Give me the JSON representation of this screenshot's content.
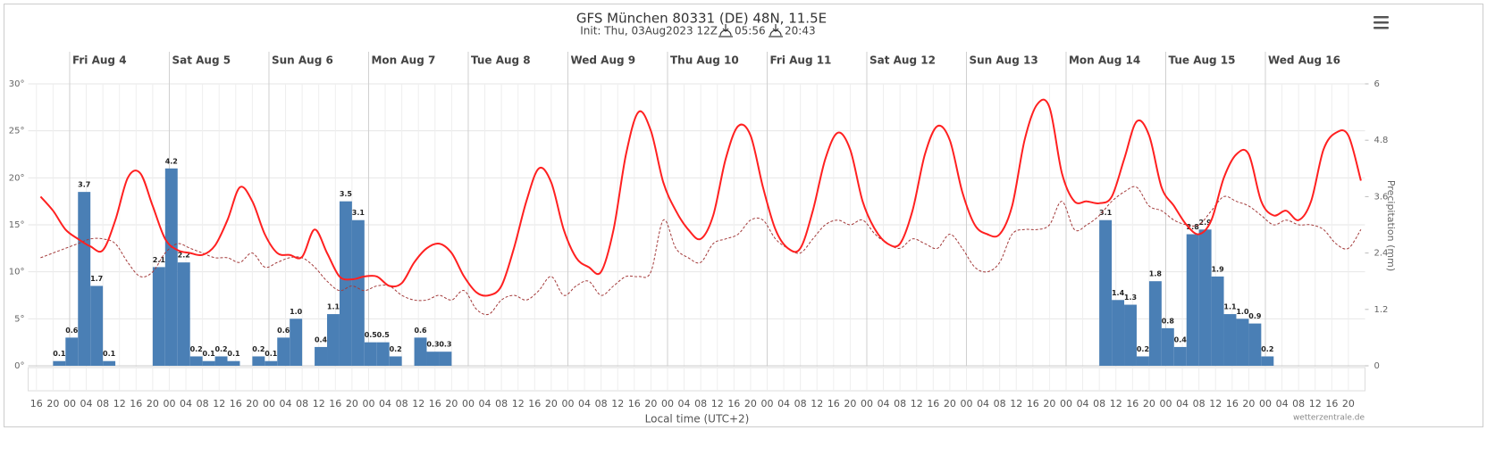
{
  "chart_data": {
    "type": "line",
    "title": "GFS München 80331 (DE) 48N, 11.5E",
    "subtitle": "Init: Thu, 03Aug2023 12Z",
    "sunrise": "05:56",
    "sunset": "20:43",
    "x_label": "Local time (UTC+2)",
    "y2_label": "Precipitation (mm)",
    "credit": "wetterzentrale.de",
    "grid": true,
    "xlim": [
      "Aug 3 14:00",
      "Aug 17 00:00"
    ],
    "ylim": [
      0,
      30
    ],
    "y2lim": [
      0,
      6
    ],
    "yticks": [
      {
        "value": 0,
        "label": "0°"
      },
      {
        "value": 5,
        "label": "5°"
      },
      {
        "value": 10,
        "label": "10°"
      },
      {
        "value": 15,
        "label": "15°"
      },
      {
        "value": 20,
        "label": "20°"
      },
      {
        "value": 25,
        "label": "25°"
      },
      {
        "value": 30,
        "label": "30°"
      }
    ],
    "y2ticks": [
      0,
      1.2,
      2.4,
      3.6,
      4.8,
      6
    ],
    "xticks_top": [
      {
        "value": "Aug 4 00:00",
        "label": "Fri Aug 4"
      },
      {
        "value": "Aug 5 00:00",
        "label": "Sat Aug 5"
      },
      {
        "value": "Aug 6 00:00",
        "label": "Sun Aug 6"
      },
      {
        "value": "Aug 7 00:00",
        "label": "Mon Aug 7"
      },
      {
        "value": "Aug 8 00:00",
        "label": "Tue Aug 8"
      },
      {
        "value": "Aug 9 00:00",
        "label": "Wed Aug 9"
      },
      {
        "value": "Aug 10 00:00",
        "label": "Thu Aug 10"
      },
      {
        "value": "Aug 11 00:00",
        "label": "Fri Aug 11"
      },
      {
        "value": "Aug 12 00:00",
        "label": "Sat Aug 12"
      },
      {
        "value": "Aug 13 00:00",
        "label": "Sun Aug 13"
      },
      {
        "value": "Aug 14 00:00",
        "label": "Mon Aug 14"
      },
      {
        "value": "Aug 15 00:00",
        "label": "Tue Aug 15"
      },
      {
        "value": "Aug 16 00:00",
        "label": "Wed Aug 16"
      }
    ],
    "xticks": [
      {
        "value": "Aug 3 16:00",
        "label": "16"
      },
      {
        "value": "Aug 3 20:00",
        "label": "20"
      },
      {
        "value": "Aug 4 00:00",
        "label": "00"
      },
      {
        "value": "Aug 4 04:00",
        "label": "04"
      },
      {
        "value": "Aug 4 08:00",
        "label": "08"
      },
      {
        "value": "Aug 4 12:00",
        "label": "12"
      },
      {
        "value": "Aug 4 16:00",
        "label": "16"
      },
      {
        "value": "Aug 4 20:00",
        "label": "20"
      },
      {
        "value": "Aug 5 00:00",
        "label": "00"
      },
      {
        "value": "Aug 5 04:00",
        "label": "04"
      },
      {
        "value": "Aug 5 08:00",
        "label": "08"
      },
      {
        "value": "Aug 5 12:00",
        "label": "12"
      },
      {
        "value": "Aug 5 16:00",
        "label": "16"
      },
      {
        "value": "Aug 5 20:00",
        "label": "20"
      },
      {
        "value": "Aug 6 00:00",
        "label": "00"
      },
      {
        "value": "Aug 6 04:00",
        "label": "04"
      },
      {
        "value": "Aug 6 08:00",
        "label": "08"
      },
      {
        "value": "Aug 6 12:00",
        "label": "12"
      },
      {
        "value": "Aug 6 16:00",
        "label": "16"
      },
      {
        "value": "Aug 6 20:00",
        "label": "20"
      },
      {
        "value": "Aug 7 00:00",
        "label": "00"
      },
      {
        "value": "Aug 7 04:00",
        "label": "04"
      },
      {
        "value": "Aug 7 08:00",
        "label": "08"
      },
      {
        "value": "Aug 7 12:00",
        "label": "12"
      },
      {
        "value": "Aug 7 16:00",
        "label": "16"
      },
      {
        "value": "Aug 7 20:00",
        "label": "20"
      },
      {
        "value": "Aug 8 00:00",
        "label": "00"
      },
      {
        "value": "Aug 8 04:00",
        "label": "04"
      },
      {
        "value": "Aug 8 08:00",
        "label": "08"
      },
      {
        "value": "Aug 8 12:00",
        "label": "12"
      },
      {
        "value": "Aug 8 16:00",
        "label": "16"
      },
      {
        "value": "Aug 8 20:00",
        "label": "20"
      },
      {
        "value": "Aug 9 00:00",
        "label": "00"
      },
      {
        "value": "Aug 9 04:00",
        "label": "04"
      },
      {
        "value": "Aug 9 08:00",
        "label": "08"
      },
      {
        "value": "Aug 9 12:00",
        "label": "12"
      },
      {
        "value": "Aug 9 16:00",
        "label": "16"
      },
      {
        "value": "Aug 9 20:00",
        "label": "20"
      },
      {
        "value": "Aug 10 00:00",
        "label": "00"
      },
      {
        "value": "Aug 10 04:00",
        "label": "04"
      },
      {
        "value": "Aug 10 08:00",
        "label": "08"
      },
      {
        "value": "Aug 10 12:00",
        "label": "12"
      },
      {
        "value": "Aug 10 16:00",
        "label": "16"
      },
      {
        "value": "Aug 10 20:00",
        "label": "20"
      },
      {
        "value": "Aug 11 00:00",
        "label": "00"
      },
      {
        "value": "Aug 11 04:00",
        "label": "04"
      },
      {
        "value": "Aug 11 08:00",
        "label": "08"
      },
      {
        "value": "Aug 11 12:00",
        "label": "12"
      },
      {
        "value": "Aug 11 16:00",
        "label": "16"
      },
      {
        "value": "Aug 11 20:00",
        "label": "20"
      },
      {
        "value": "Aug 12 00:00",
        "label": "00"
      },
      {
        "value": "Aug 12 04:00",
        "label": "04"
      },
      {
        "value": "Aug 12 08:00",
        "label": "08"
      },
      {
        "value": "Aug 12 12:00",
        "label": "12"
      },
      {
        "value": "Aug 12 16:00",
        "label": "16"
      },
      {
        "value": "Aug 12 20:00",
        "label": "20"
      },
      {
        "value": "Aug 13 00:00",
        "label": "00"
      },
      {
        "value": "Aug 13 04:00",
        "label": "04"
      },
      {
        "value": "Aug 13 08:00",
        "label": "08"
      },
      {
        "value": "Aug 13 12:00",
        "label": "12"
      },
      {
        "value": "Aug 13 16:00",
        "label": "16"
      },
      {
        "value": "Aug 13 20:00",
        "label": "20"
      },
      {
        "value": "Aug 14 00:00",
        "label": "00"
      },
      {
        "value": "Aug 14 04:00",
        "label": "04"
      },
      {
        "value": "Aug 14 08:00",
        "label": "08"
      },
      {
        "value": "Aug 14 12:00",
        "label": "12"
      },
      {
        "value": "Aug 14 16:00",
        "label": "16"
      },
      {
        "value": "Aug 14 20:00",
        "label": "20"
      },
      {
        "value": "Aug 15 00:00",
        "label": "00"
      },
      {
        "value": "Aug 15 04:00",
        "label": "04"
      },
      {
        "value": "Aug 15 08:00",
        "label": "08"
      },
      {
        "value": "Aug 15 12:00",
        "label": "12"
      },
      {
        "value": "Aug 15 16:00",
        "label": "16"
      },
      {
        "value": "Aug 15 20:00",
        "label": "20"
      },
      {
        "value": "Aug 16 00:00",
        "label": "00"
      },
      {
        "value": "Aug 16 04:00",
        "label": "04"
      },
      {
        "value": "Aug 16 08:00",
        "label": "08"
      },
      {
        "value": "Aug 16 12:00",
        "label": "12"
      },
      {
        "value": "Aug 16 16:00",
        "label": "16"
      },
      {
        "value": "Aug 16 20:00",
        "label": "20"
      }
    ],
    "x": [
      "Aug 3 17:00",
      "Aug 3 20:00",
      "Aug 3 23:00",
      "Aug 4 02:00",
      "Aug 4 05:00",
      "Aug 4 08:00",
      "Aug 4 11:00",
      "Aug 4 14:00",
      "Aug 4 17:00",
      "Aug 4 20:00",
      "Aug 4 23:00",
      "Aug 5 02:00",
      "Aug 5 05:00",
      "Aug 5 08:00",
      "Aug 5 11:00",
      "Aug 5 14:00",
      "Aug 5 17:00",
      "Aug 5 20:00",
      "Aug 5 23:00",
      "Aug 6 02:00",
      "Aug 6 05:00",
      "Aug 6 08:00",
      "Aug 6 11:00",
      "Aug 6 14:00",
      "Aug 6 17:00",
      "Aug 6 20:00",
      "Aug 6 23:00",
      "Aug 7 02:00",
      "Aug 7 05:00",
      "Aug 7 08:00",
      "Aug 7 11:00",
      "Aug 7 14:00",
      "Aug 7 17:00",
      "Aug 7 20:00",
      "Aug 7 23:00",
      "Aug 8 02:00",
      "Aug 8 05:00",
      "Aug 8 08:00",
      "Aug 8 11:00",
      "Aug 8 14:00",
      "Aug 8 17:00",
      "Aug 8 20:00",
      "Aug 8 23:00",
      "Aug 9 02:00",
      "Aug 9 05:00",
      "Aug 9 08:00",
      "Aug 9 11:00",
      "Aug 9 14:00",
      "Aug 9 17:00",
      "Aug 9 20:00",
      "Aug 9 23:00",
      "Aug 10 02:00",
      "Aug 10 05:00",
      "Aug 10 08:00",
      "Aug 10 11:00",
      "Aug 10 14:00",
      "Aug 10 17:00",
      "Aug 10 20:00",
      "Aug 10 23:00",
      "Aug 11 02:00",
      "Aug 11 05:00",
      "Aug 11 08:00",
      "Aug 11 11:00",
      "Aug 11 14:00",
      "Aug 11 17:00",
      "Aug 11 20:00",
      "Aug 11 23:00",
      "Aug 12 02:00",
      "Aug 12 05:00",
      "Aug 12 08:00",
      "Aug 12 11:00",
      "Aug 12 14:00",
      "Aug 12 17:00",
      "Aug 12 20:00",
      "Aug 12 23:00",
      "Aug 13 02:00",
      "Aug 13 05:00",
      "Aug 13 08:00",
      "Aug 13 11:00",
      "Aug 13 14:00",
      "Aug 13 17:00",
      "Aug 13 20:00",
      "Aug 13 23:00",
      "Aug 14 02:00",
      "Aug 14 05:00",
      "Aug 14 08:00",
      "Aug 14 11:00",
      "Aug 14 14:00",
      "Aug 14 17:00",
      "Aug 14 20:00",
      "Aug 14 23:00",
      "Aug 15 02:00",
      "Aug 15 05:00",
      "Aug 15 08:00",
      "Aug 15 11:00",
      "Aug 15 14:00",
      "Aug 15 17:00",
      "Aug 15 20:00",
      "Aug 15 23:00",
      "Aug 16 02:00",
      "Aug 16 05:00",
      "Aug 16 08:00",
      "Aug 16 11:00",
      "Aug 16 14:00",
      "Aug 16 17:00",
      "Aug 16 20:00",
      "Aug 16 23:00"
    ],
    "series": [
      {
        "type": "bar",
        "axis": "y2",
        "color": "#4a7fb5",
        "values": [
          null,
          0.1,
          0.6,
          3.7,
          1.7,
          0.1,
          null,
          null,
          null,
          2.1,
          4.2,
          2.2,
          0.2,
          0.1,
          0.2,
          0.1,
          null,
          0.2,
          0.1,
          0.6,
          1.0,
          null,
          0.4,
          1.1,
          3.5,
          3.1,
          0.5,
          0.5,
          0.2,
          null,
          0.6,
          0.3,
          0.3,
          null,
          null,
          null,
          null,
          null,
          null,
          null,
          null,
          null,
          null,
          null,
          null,
          null,
          null,
          null,
          null,
          null,
          null,
          null,
          null,
          null,
          null,
          null,
          null,
          null,
          null,
          null,
          null,
          null,
          null,
          null,
          null,
          null,
          null,
          null,
          null,
          null,
          null,
          null,
          null,
          null,
          null,
          null,
          null,
          null,
          null,
          null,
          null,
          null,
          null,
          null,
          null,
          3.1,
          1.4,
          1.3,
          0.2,
          1.8,
          0.8,
          0.4,
          2.8,
          2.9,
          1.9,
          1.1,
          1.0,
          0.9,
          0.2,
          null,
          null,
          null,
          null,
          null,
          null,
          null,
          null
        ],
        "value_labels": [
          null,
          "0.1",
          "0.6",
          "3.7",
          "1.7",
          "0.1",
          null,
          null,
          null,
          "2.1",
          "4.2",
          "2.2",
          "0.2",
          "0.1",
          "0.2",
          "0.1",
          null,
          "0.2",
          "0.1",
          "0.6",
          "1.0",
          null,
          "0.4",
          "1.1",
          "3.5",
          "3.1",
          "0.5",
          "0.5",
          "0.2",
          null,
          "0.6",
          "0.3",
          "0.3",
          null,
          null,
          null,
          null,
          null,
          null,
          null,
          null,
          null,
          null,
          null,
          null,
          null,
          null,
          null,
          null,
          null,
          null,
          null,
          null,
          null,
          null,
          null,
          null,
          null,
          null,
          null,
          null,
          null,
          null,
          null,
          null,
          null,
          null,
          null,
          null,
          null,
          null,
          null,
          null,
          null,
          null,
          null,
          null,
          null,
          null,
          null,
          null,
          null,
          null,
          null,
          null,
          "3.1",
          "1.4",
          "1.3",
          "0.2",
          "1.8",
          "0.8",
          "0.4",
          "2.8",
          "2.9",
          "1.9",
          "1.1",
          "1.0",
          "0.9",
          "0.2",
          null,
          null,
          null,
          null,
          null,
          null,
          null,
          null
        ]
      },
      {
        "type": "line",
        "dash": true,
        "color": "#a33a3a",
        "values": [
          11.5,
          12.0,
          12.5,
          13.0,
          13.5,
          13.5,
          13.0,
          11.0,
          9.5,
          10.0,
          12.0,
          13.0,
          12.5,
          12.0,
          11.5,
          11.5,
          11.0,
          12.0,
          10.5,
          11.0,
          11.5,
          11.5,
          10.5,
          9.0,
          8.0,
          8.5,
          8.0,
          8.5,
          8.5,
          7.5,
          7.0,
          7.0,
          7.5,
          7.0,
          8.0,
          6.0,
          5.5,
          7.0,
          7.5,
          7.0,
          8.0,
          9.5,
          7.5,
          8.5,
          9.0,
          7.5,
          8.5,
          9.5,
          9.5,
          10.0,
          15.5,
          12.5,
          11.5,
          11.0,
          13.0,
          13.5,
          14.0,
          15.5,
          15.5,
          13.5,
          12.5,
          12.0,
          13.5,
          15.0,
          15.5,
          15.0,
          15.5,
          14.0,
          13.0,
          12.5,
          13.5,
          13.0,
          12.5,
          14.0,
          12.5,
          10.5,
          10.0,
          11.0,
          14.0,
          14.5,
          14.5,
          15.0,
          17.5,
          14.5,
          15.0,
          16.0,
          17.5,
          18.5,
          19.0,
          17.0,
          16.5,
          15.5,
          15.0,
          15.0,
          16.5,
          18.0,
          17.5,
          17.0,
          16.0,
          15.0,
          15.5,
          15.0,
          15.0,
          14.5,
          13.0,
          12.5,
          14.5
        ]
      },
      {
        "type": "line",
        "dash": false,
        "color": "#ff2020",
        "values": [
          18.0,
          16.5,
          14.5,
          13.5,
          12.7,
          12.3,
          15.5,
          20.0,
          20.5,
          17.0,
          13.5,
          12.3,
          12.0,
          11.8,
          12.8,
          15.5,
          19.0,
          17.5,
          14.0,
          12.0,
          11.8,
          11.6,
          14.5,
          12.0,
          9.5,
          9.2,
          9.5,
          9.5,
          8.5,
          8.8,
          11.0,
          12.5,
          13.0,
          12.0,
          9.5,
          7.8,
          7.5,
          8.5,
          12.5,
          17.5,
          21.0,
          19.5,
          14.5,
          11.5,
          10.5,
          10.0,
          14.5,
          22.5,
          27.0,
          25.0,
          19.5,
          16.5,
          14.5,
          13.5,
          16.0,
          22.0,
          25.5,
          24.5,
          19.0,
          14.5,
          12.5,
          12.5,
          16.5,
          22.0,
          24.8,
          23.0,
          17.5,
          14.5,
          13.0,
          13.0,
          16.5,
          22.5,
          25.5,
          24.0,
          18.5,
          15.0,
          14.0,
          14.0,
          17.0,
          24.0,
          27.8,
          27.5,
          20.5,
          17.5,
          17.5,
          17.3,
          18.0,
          22.0,
          26.0,
          24.5,
          19.0,
          17.0,
          15.0,
          14.0,
          15.5,
          20.0,
          22.5,
          22.5,
          17.5,
          16.0,
          16.5,
          15.5,
          17.5,
          23.0,
          24.8,
          24.5,
          19.7
        ]
      }
    ]
  }
}
